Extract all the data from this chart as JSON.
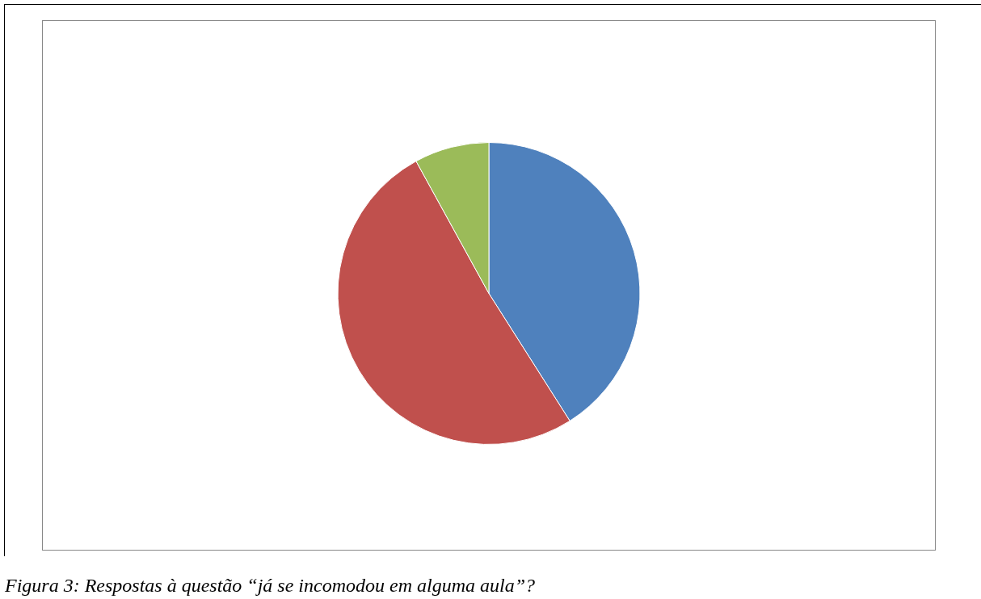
{
  "chart_data": {
    "type": "pie",
    "categories": [
      null,
      null,
      null
    ],
    "values": [
      41,
      51,
      8
    ],
    "colors": [
      "#4f81bd",
      "#c0504d",
      "#9bbb59"
    ],
    "annotations": [
      "Figura 3: Respostas à questão “já se incomodou em alguma aula”?"
    ]
  }
}
